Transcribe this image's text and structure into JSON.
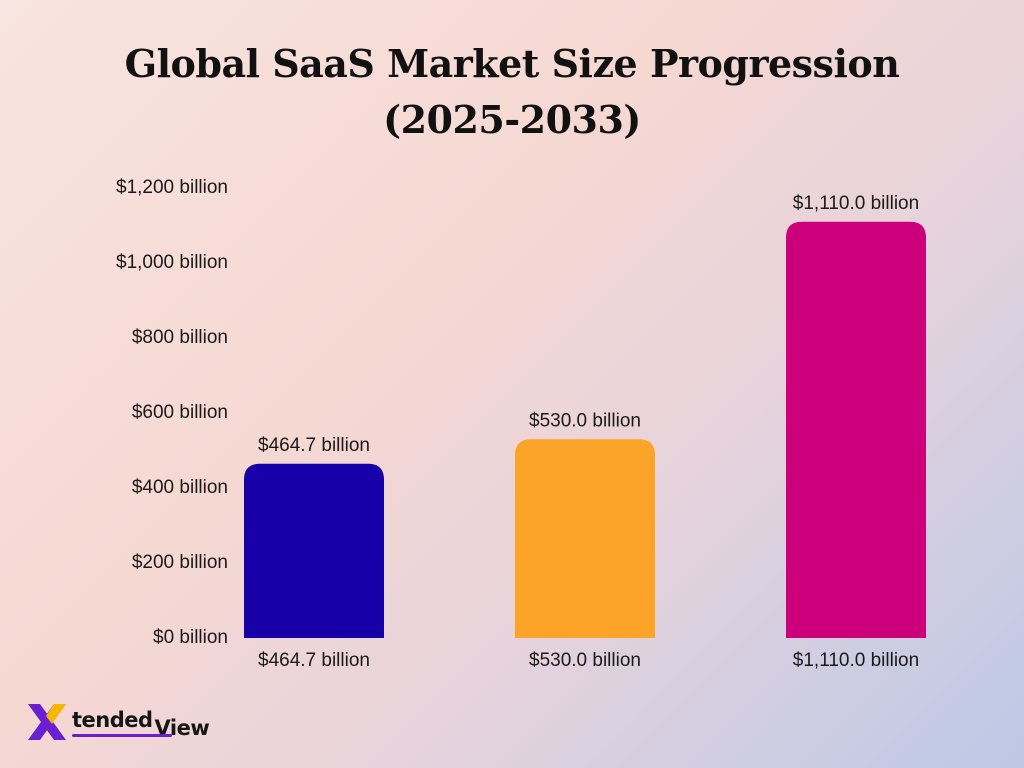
{
  "chart_data": {
    "type": "bar",
    "title": "Global SaaS Market Size Progression",
    "subtitle": "(2025-2033)",
    "categories": [
      "$464.7 billion",
      "$530.0 billion",
      "$1,110.0 billion"
    ],
    "values": [
      464.7,
      530.0,
      1110.0
    ],
    "value_labels": [
      "$464.7 billion",
      "$530.0 billion",
      "$1,110.0 billion"
    ],
    "colors": [
      "#1800a8",
      "#fba428",
      "#cc007a"
    ],
    "ylim": [
      0,
      1200
    ],
    "yticks": [
      0,
      200,
      400,
      600,
      800,
      1000,
      1200
    ],
    "ytick_labels": [
      "$0 billion",
      "$200 billion",
      "$400 billion",
      "$600 billion",
      "$800 billion",
      "$1,000 billion",
      "$1,200 billion"
    ],
    "grid": false,
    "legend": "none"
  },
  "logo": {
    "brand_part1": "tended",
    "brand_part2": "View",
    "colors": [
      "#6a1fd0",
      "#f5b800"
    ]
  }
}
